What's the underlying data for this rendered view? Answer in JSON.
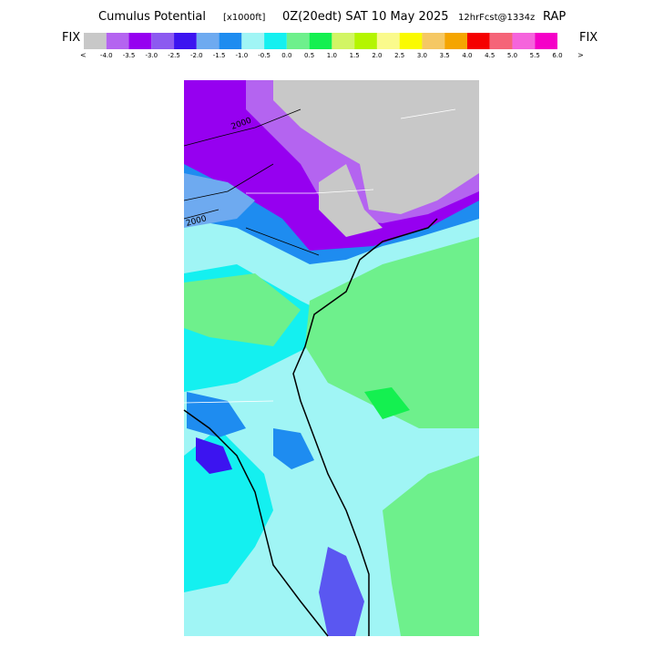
{
  "header": {
    "title": "Cumulus Potential",
    "units": "[x1000ft]",
    "valid": "0Z(20edt) SAT 10 May 2025",
    "forecast": "12hrFcst@1334z",
    "model": "RAP"
  },
  "colorbar": {
    "left_label": "FIX",
    "right_label": "FIX",
    "left_arrow": "<",
    "right_arrow": ">",
    "colors": [
      "#c8c8c8",
      "#b464f0",
      "#9600f0",
      "#8c5af0",
      "#3c14f0",
      "#6eaaf0",
      "#1e8cf0",
      "#a0f5f5",
      "#14f0f0",
      "#6ef08c",
      "#14f050",
      "#d2f564",
      "#b4f500",
      "#fafa8c",
      "#fafa00",
      "#f5c864",
      "#f5a500",
      "#f50000",
      "#f56478",
      "#f564dc",
      "#f500c8"
    ],
    "labels": [
      "-4.0",
      "-3.5",
      "-3.0",
      "-2.5",
      "-2.0",
      "-1.5",
      "-1.0",
      "-0.5",
      "0.0",
      "0.5",
      "1.0",
      "1.5",
      "2.0",
      "2.5",
      "3.0",
      "3.5",
      "4.0",
      "4.5",
      "5.0",
      "5.5",
      "6.0"
    ]
  },
  "map": {
    "contour_labels": [
      "2000",
      "2000"
    ]
  }
}
